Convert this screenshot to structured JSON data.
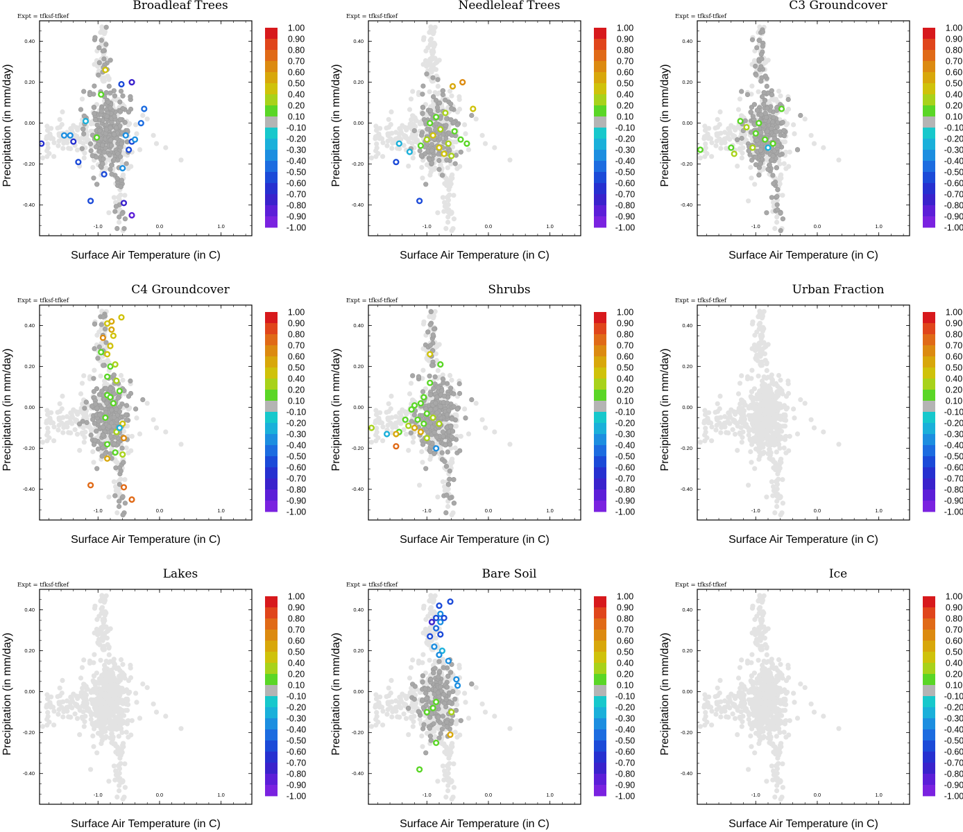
{
  "chart_data": {
    "type": "scatter",
    "layout": "3x3 panel grid, one colorbar per panel",
    "expt_label": "Expt = tfksf-tfkef",
    "xlabel": "Surface Air Temperature (in C)",
    "ylabel": "Precipitation (in mm/day)",
    "xlim": [
      -1.95,
      1.5
    ],
    "ylim": [
      -0.55,
      0.5
    ],
    "xticks": [
      -1.0,
      0.0,
      1.0
    ],
    "xtick_labels": [
      "-1.0",
      "0.0",
      "1.0"
    ],
    "yticks": [
      0.4,
      0.2,
      0.0,
      -0.2,
      -0.4
    ],
    "ytick_labels": [
      "0.40",
      "0.20",
      "0.00",
      "-0.20",
      "-0.40"
    ],
    "colorbar": {
      "labels": [
        "1.00",
        "0.90",
        "0.80",
        "0.70",
        "0.60",
        "0.50",
        "0.40",
        "0.20",
        "0.10",
        "-0.10",
        "-0.20",
        "-0.30",
        "-0.40",
        "-0.50",
        "-0.60",
        "-0.70",
        "-0.80",
        "-0.90",
        "-1.00"
      ],
      "colors": [
        "#d7191c",
        "#e0451b",
        "#e06a17",
        "#dc8a10",
        "#d8a70a",
        "#cfc20a",
        "#a8d21a",
        "#5ad626",
        "#b4b4b4",
        "#17c8cc",
        "#1ab0da",
        "#1c8ee0",
        "#1c6ce0",
        "#1b4ad8",
        "#2630d0",
        "#3a22cc",
        "#5c1ed8",
        "#7a22e0"
      ]
    },
    "colors": {
      "background_points": "#e3e3e3",
      "neutral_points": "#a8a8a8",
      "frame": "#000000"
    },
    "panels": [
      {
        "title": "Broadleaf Trees",
        "neutral_cloud": "full",
        "points": [
          {
            "x": -0.88,
            "y": 0.26,
            "v": 0.4
          },
          {
            "x": -0.62,
            "y": 0.19,
            "v": -0.5
          },
          {
            "x": -0.45,
            "y": 0.2,
            "v": -0.7
          },
          {
            "x": -0.25,
            "y": 0.07,
            "v": -0.4
          },
          {
            "x": -0.95,
            "y": 0.14,
            "v": 0.15
          },
          {
            "x": -1.2,
            "y": 0.01,
            "v": -0.2
          },
          {
            "x": -1.55,
            "y": -0.06,
            "v": -0.25
          },
          {
            "x": -1.45,
            "y": -0.06,
            "v": -0.25
          },
          {
            "x": -1.4,
            "y": -0.09,
            "v": -0.6
          },
          {
            "x": -1.92,
            "y": -0.1,
            "v": -0.6
          },
          {
            "x": -1.02,
            "y": -0.07,
            "v": 0.15
          },
          {
            "x": -0.55,
            "y": -0.06,
            "v": -0.3
          },
          {
            "x": -0.5,
            "y": -0.13,
            "v": -0.5
          },
          {
            "x": -0.45,
            "y": -0.09,
            "v": -0.45
          },
          {
            "x": -0.4,
            "y": -0.08,
            "v": -0.25
          },
          {
            "x": -0.6,
            "y": -0.22,
            "v": -0.3
          },
          {
            "x": -0.9,
            "y": -0.25,
            "v": -0.5
          },
          {
            "x": -1.32,
            "y": -0.19,
            "v": -0.5
          },
          {
            "x": -1.12,
            "y": -0.38,
            "v": -0.5
          },
          {
            "x": -0.58,
            "y": -0.39,
            "v": -0.75
          },
          {
            "x": -0.45,
            "y": -0.45,
            "v": -0.85
          },
          {
            "x": -0.3,
            "y": 0.0,
            "v": -0.35
          }
        ]
      },
      {
        "title": "Needleleaf Trees",
        "neutral_cloud": "sparse",
        "points": [
          {
            "x": -0.58,
            "y": 0.18,
            "v": 0.45
          },
          {
            "x": -0.42,
            "y": 0.2,
            "v": 0.6
          },
          {
            "x": -0.25,
            "y": 0.07,
            "v": 0.35
          },
          {
            "x": -0.7,
            "y": 0.05,
            "v": 0.25
          },
          {
            "x": -0.78,
            "y": -0.03,
            "v": 0.3
          },
          {
            "x": -0.9,
            "y": -0.06,
            "v": 0.4
          },
          {
            "x": -0.65,
            "y": -0.1,
            "v": 0.3
          },
          {
            "x": -0.55,
            "y": -0.04,
            "v": 0.2
          },
          {
            "x": -1.0,
            "y": -0.08,
            "v": 0.25
          },
          {
            "x": -1.1,
            "y": -0.11,
            "v": 0.15
          },
          {
            "x": -0.45,
            "y": -0.08,
            "v": 0.15
          },
          {
            "x": -0.35,
            "y": -0.1,
            "v": 0.2
          },
          {
            "x": -0.72,
            "y": -0.15,
            "v": 0.35
          },
          {
            "x": -0.85,
            "y": 0.03,
            "v": 0.15
          },
          {
            "x": -1.45,
            "y": -0.1,
            "v": -0.2
          },
          {
            "x": -1.5,
            "y": -0.19,
            "v": -0.5
          },
          {
            "x": -1.12,
            "y": -0.38,
            "v": -0.5
          },
          {
            "x": -1.28,
            "y": -0.14,
            "v": -0.2
          },
          {
            "x": -0.6,
            "y": -0.16,
            "v": 0.3
          },
          {
            "x": -0.8,
            "y": -0.12,
            "v": 0.35
          },
          {
            "x": -0.95,
            "y": 0.0,
            "v": 0.15
          }
        ]
      },
      {
        "title": "C3 Groundcover",
        "neutral_cloud": "full",
        "points": [
          {
            "x": -1.25,
            "y": 0.01,
            "v": 0.15
          },
          {
            "x": -1.15,
            "y": -0.02,
            "v": 0.25
          },
          {
            "x": -1.0,
            "y": -0.05,
            "v": 0.15
          },
          {
            "x": -0.95,
            "y": 0.0,
            "v": 0.15
          },
          {
            "x": -0.85,
            "y": -0.08,
            "v": 0.2
          },
          {
            "x": -1.05,
            "y": -0.12,
            "v": 0.3
          },
          {
            "x": -0.72,
            "y": -0.1,
            "v": 0.15
          },
          {
            "x": -0.58,
            "y": 0.07,
            "v": 0.15
          },
          {
            "x": -1.4,
            "y": -0.12,
            "v": 0.15
          },
          {
            "x": -1.35,
            "y": -0.15,
            "v": 0.3
          },
          {
            "x": -1.9,
            "y": -0.13,
            "v": 0.2
          },
          {
            "x": -0.8,
            "y": -0.12,
            "v": -0.2
          }
        ]
      },
      {
        "title": "C4 Groundcover",
        "neutral_cloud": "full",
        "points": [
          {
            "x": -0.62,
            "y": 0.44,
            "v": 0.4
          },
          {
            "x": -0.78,
            "y": 0.42,
            "v": 0.45
          },
          {
            "x": -0.85,
            "y": 0.41,
            "v": 0.35
          },
          {
            "x": -0.78,
            "y": 0.38,
            "v": 0.45
          },
          {
            "x": -0.75,
            "y": 0.35,
            "v": 0.4
          },
          {
            "x": -0.92,
            "y": 0.34,
            "v": 0.65
          },
          {
            "x": -0.8,
            "y": 0.3,
            "v": 0.4
          },
          {
            "x": -0.85,
            "y": 0.26,
            "v": 0.4
          },
          {
            "x": -0.95,
            "y": 0.27,
            "v": 0.15
          },
          {
            "x": -0.8,
            "y": 0.2,
            "v": 0.15
          },
          {
            "x": -0.72,
            "y": 0.21,
            "v": 0.3
          },
          {
            "x": -0.85,
            "y": 0.15,
            "v": 0.15
          },
          {
            "x": -0.7,
            "y": 0.13,
            "v": 0.25
          },
          {
            "x": -0.65,
            "y": 0.08,
            "v": 0.15
          },
          {
            "x": -0.85,
            "y": 0.06,
            "v": 0.15
          },
          {
            "x": -0.75,
            "y": 0.02,
            "v": 0.2
          },
          {
            "x": -0.88,
            "y": -0.05,
            "v": 0.15
          },
          {
            "x": -0.6,
            "y": -0.08,
            "v": 0.35
          },
          {
            "x": -0.7,
            "y": -0.12,
            "v": 0.25
          },
          {
            "x": -0.58,
            "y": -0.15,
            "v": 0.65
          },
          {
            "x": -0.85,
            "y": -0.18,
            "v": 0.2
          },
          {
            "x": -0.72,
            "y": -0.22,
            "v": 0.15
          },
          {
            "x": -0.6,
            "y": -0.23,
            "v": 0.3
          },
          {
            "x": -0.85,
            "y": -0.25,
            "v": 0.55
          },
          {
            "x": -1.12,
            "y": -0.38,
            "v": 0.75
          },
          {
            "x": -0.58,
            "y": -0.39,
            "v": 0.75
          },
          {
            "x": -0.45,
            "y": -0.45,
            "v": 0.75
          },
          {
            "x": -0.65,
            "y": -0.1,
            "v": -0.2
          },
          {
            "x": -0.8,
            "y": 0.05,
            "v": 0.15
          }
        ]
      },
      {
        "title": "Shrubs",
        "neutral_cloud": "full",
        "points": [
          {
            "x": -0.95,
            "y": 0.26,
            "v": 0.4
          },
          {
            "x": -0.78,
            "y": 0.21,
            "v": 0.15
          },
          {
            "x": -0.95,
            "y": 0.12,
            "v": 0.15
          },
          {
            "x": -1.05,
            "y": 0.05,
            "v": 0.15
          },
          {
            "x": -1.1,
            "y": 0.02,
            "v": 0.15
          },
          {
            "x": -1.2,
            "y": 0.01,
            "v": 0.2
          },
          {
            "x": -1.25,
            "y": -0.01,
            "v": 0.15
          },
          {
            "x": -1.0,
            "y": -0.03,
            "v": 0.2
          },
          {
            "x": -0.9,
            "y": -0.05,
            "v": 0.25
          },
          {
            "x": -1.15,
            "y": -0.06,
            "v": 0.15
          },
          {
            "x": -1.35,
            "y": -0.06,
            "v": 0.15
          },
          {
            "x": -1.3,
            "y": -0.09,
            "v": 0.25
          },
          {
            "x": -1.45,
            "y": -0.12,
            "v": 0.15
          },
          {
            "x": -1.2,
            "y": -0.1,
            "v": 0.45
          },
          {
            "x": -1.1,
            "y": -0.12,
            "v": 0.55
          },
          {
            "x": -1.5,
            "y": -0.13,
            "v": 0.5
          },
          {
            "x": -1.65,
            "y": -0.13,
            "v": -0.2
          },
          {
            "x": -1.9,
            "y": -0.1,
            "v": 0.3
          },
          {
            "x": -1.5,
            "y": -0.19,
            "v": 0.75
          },
          {
            "x": -1.0,
            "y": -0.15,
            "v": 0.25
          },
          {
            "x": -0.85,
            "y": -0.2,
            "v": -0.3
          },
          {
            "x": -0.8,
            "y": -0.08,
            "v": 0.25
          },
          {
            "x": -1.05,
            "y": -0.08,
            "v": 0.15
          }
        ]
      },
      {
        "title": "Urban Fraction",
        "neutral_cloud": "none",
        "points": []
      },
      {
        "title": "Lakes",
        "neutral_cloud": "none",
        "points": []
      },
      {
        "title": "Bare Soil",
        "neutral_cloud": "sparse",
        "points": [
          {
            "x": -0.62,
            "y": 0.44,
            "v": -0.5
          },
          {
            "x": -0.8,
            "y": 0.42,
            "v": -0.5
          },
          {
            "x": -0.78,
            "y": 0.38,
            "v": -0.3
          },
          {
            "x": -0.85,
            "y": 0.36,
            "v": -0.45
          },
          {
            "x": -0.78,
            "y": 0.34,
            "v": -0.3
          },
          {
            "x": -0.72,
            "y": 0.36,
            "v": -0.5
          },
          {
            "x": -0.92,
            "y": 0.34,
            "v": -0.7
          },
          {
            "x": -0.85,
            "y": 0.31,
            "v": -0.4
          },
          {
            "x": -0.78,
            "y": 0.28,
            "v": -0.45
          },
          {
            "x": -0.95,
            "y": 0.27,
            "v": -0.5
          },
          {
            "x": -0.88,
            "y": 0.22,
            "v": -0.3
          },
          {
            "x": -0.75,
            "y": 0.2,
            "v": -0.2
          },
          {
            "x": -0.8,
            "y": 0.18,
            "v": -0.25
          },
          {
            "x": -0.65,
            "y": 0.15,
            "v": -0.3
          },
          {
            "x": -0.52,
            "y": 0.06,
            "v": -0.25
          },
          {
            "x": -0.5,
            "y": 0.03,
            "v": -0.3
          },
          {
            "x": -0.85,
            "y": -0.05,
            "v": 0.15
          },
          {
            "x": -0.9,
            "y": -0.08,
            "v": 0.15
          },
          {
            "x": -1.0,
            "y": -0.1,
            "v": 0.15
          },
          {
            "x": -0.6,
            "y": -0.1,
            "v": 0.3
          },
          {
            "x": -1.12,
            "y": -0.38,
            "v": 0.15
          },
          {
            "x": -0.85,
            "y": -0.25,
            "v": 0.15
          },
          {
            "x": -0.62,
            "y": -0.21,
            "v": 0.45
          }
        ]
      },
      {
        "title": "Ice",
        "neutral_cloud": "none",
        "points": []
      }
    ]
  }
}
